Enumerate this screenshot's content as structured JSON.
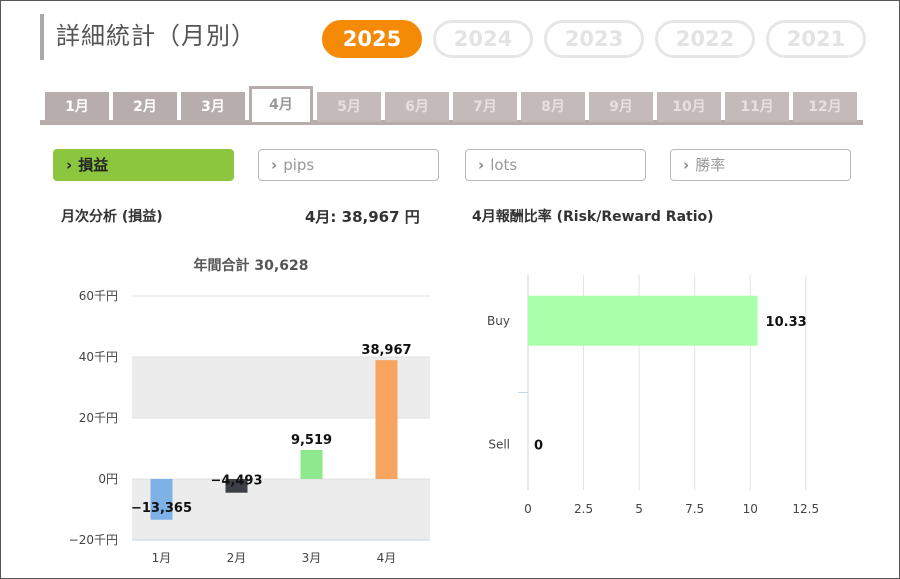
{
  "title": "詳細統計（月別）",
  "years": [
    "2025",
    "2024",
    "2023",
    "2022",
    "2021"
  ],
  "months": [
    "1月",
    "2月",
    "3月",
    "4月",
    "5月",
    "6月",
    "7月",
    "8月",
    "9月",
    "10月",
    "11月",
    "12月"
  ],
  "metrics": [
    {
      "label": "損益",
      "icon": "chevron-right-icon"
    },
    {
      "label": "pips",
      "icon": "chevron-right-icon"
    },
    {
      "label": "lots",
      "icon": "chevron-right-icon"
    },
    {
      "label": "勝率",
      "icon": "chevron-right-icon"
    }
  ],
  "summary": {
    "section_label": "月次分析 (損益)",
    "month_value": "4月:  38,967 円",
    "ratio_title": "4月報酬比率 (Risk/Reward Ratio)"
  },
  "colors": {
    "accent": "#f58a07",
    "active_metric": "#8cc63f",
    "tab": "#b7adad"
  },
  "chart_data": [
    {
      "type": "bar",
      "title": "年間合計 30,628",
      "categories": [
        "1月",
        "2月",
        "3月",
        "4月"
      ],
      "values": [
        -13365,
        -4493,
        9519,
        38967
      ],
      "value_labels": [
        "−13,365",
        "−4,493",
        "9,519",
        "38,967"
      ],
      "bar_colors": [
        "#7eb2e6",
        "#3c3f46",
        "#8ee88e",
        "#f6a45e"
      ],
      "ylim": [
        -20000,
        60000
      ],
      "yticks": [
        60000,
        40000,
        20000,
        0,
        -20000
      ],
      "ytick_labels": [
        "60千円",
        "40千円",
        "20千円",
        "0円",
        "−20千円"
      ],
      "grid": true
    },
    {
      "type": "bar",
      "orientation": "horizontal",
      "categories": [
        "Buy",
        "Sell"
      ],
      "values": [
        10.33,
        0
      ],
      "value_labels": [
        "10.33",
        "0"
      ],
      "bar_colors": [
        "#aaffaa",
        "#aaffaa"
      ],
      "xlim": [
        0,
        13.5
      ],
      "xticks": [
        0,
        2.5,
        5,
        7.5,
        10,
        12.5
      ],
      "xtick_labels": [
        "0",
        "2.5",
        "5",
        "7.5",
        "10",
        "12.5"
      ],
      "grid": true
    }
  ]
}
